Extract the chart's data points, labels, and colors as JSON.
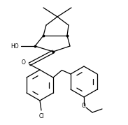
{
  "bg_color": "#ffffff",
  "line_color": "#000000",
  "lw": 0.9,
  "figsize": [
    1.83,
    1.79
  ],
  "dpi": 100,
  "xlim": [
    0,
    183
  ],
  "ylim": [
    0,
    179
  ]
}
